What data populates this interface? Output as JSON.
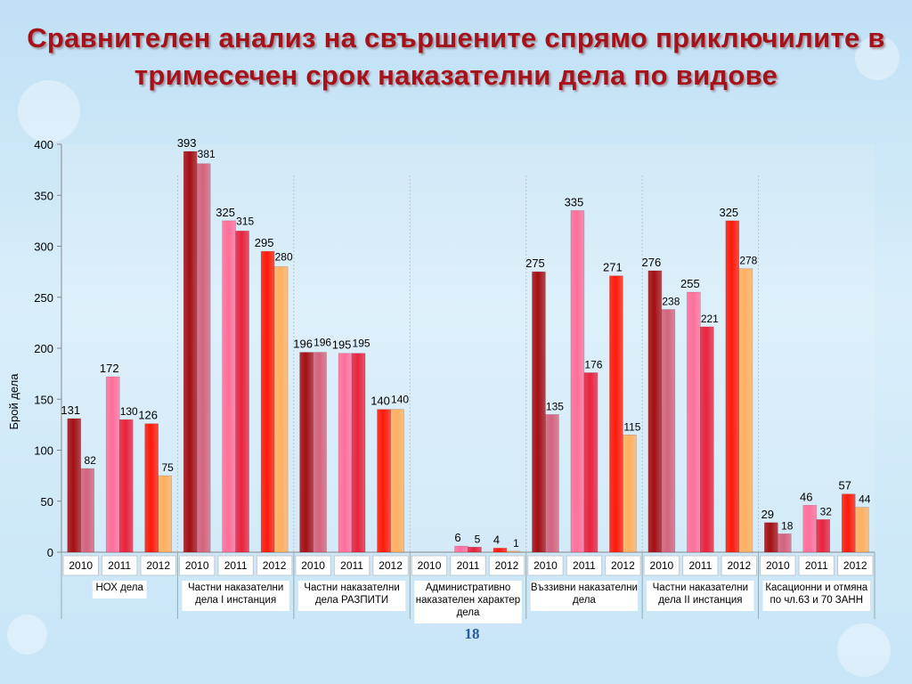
{
  "slide": {
    "title": "Сравнителен анализ на свършените спрямо приключилите в тримесечен срок наказателни дела по видове",
    "page_number": "18"
  },
  "chart_data": {
    "type": "bar",
    "ylabel": "Брой дела",
    "ylim": [
      0,
      400
    ],
    "yticks": [
      0,
      50,
      100,
      150,
      200,
      250,
      300,
      350,
      400
    ],
    "grid": false,
    "groups": [
      {
        "label": "НОХ дела",
        "years": [
          {
            "year": "2010",
            "values": [
              131,
              82
            ]
          },
          {
            "year": "2011",
            "values": [
              172,
              130
            ]
          },
          {
            "year": "2012",
            "values": [
              126,
              75
            ]
          }
        ]
      },
      {
        "label": "Частни наказателни дела I инстанция",
        "years": [
          {
            "year": "2010",
            "values": [
              393,
              381
            ]
          },
          {
            "year": "2011",
            "values": [
              325,
              315
            ]
          },
          {
            "year": "2012",
            "values": [
              295,
              280
            ]
          }
        ]
      },
      {
        "label": "Частни наказателни дела РАЗПИТИ",
        "years": [
          {
            "year": "2010",
            "values": [
              196,
              196
            ]
          },
          {
            "year": "2011",
            "values": [
              195,
              195
            ]
          },
          {
            "year": "2012",
            "values": [
              140,
              140
            ]
          }
        ]
      },
      {
        "label": "Административно наказателен характер дела",
        "years": [
          {
            "year": "2010",
            "values": [
              null,
              null
            ]
          },
          {
            "year": "2011",
            "values": [
              6,
              5
            ]
          },
          {
            "year": "2012",
            "values": [
              4,
              1
            ]
          }
        ]
      },
      {
        "label": "Въззивни наказателни дела",
        "years": [
          {
            "year": "2010",
            "values": [
              275,
              135
            ]
          },
          {
            "year": "2011",
            "values": [
              335,
              176
            ]
          },
          {
            "year": "2012",
            "values": [
              271,
              115
            ]
          }
        ]
      },
      {
        "label": "Частни наказателни дела II инстанция",
        "years": [
          {
            "year": "2010",
            "values": [
              276,
              238
            ]
          },
          {
            "year": "2011",
            "values": [
              255,
              221
            ]
          },
          {
            "year": "2012",
            "values": [
              325,
              278
            ]
          }
        ]
      },
      {
        "label": "Касационни и отмяна по чл.63 и 70 ЗАНН",
        "years": [
          {
            "year": "2010",
            "values": [
              29,
              18
            ]
          },
          {
            "year": "2011",
            "values": [
              46,
              32
            ]
          },
          {
            "year": "2012",
            "values": [
              57,
              44
            ]
          }
        ]
      }
    ],
    "colors": {
      "2010": [
        "#a40f14",
        "#d4637e"
      ],
      "2011": [
        "#ff6f9a",
        "#e8233f"
      ],
      "2012": [
        "#ff1a0a",
        "#ffb060"
      ]
    }
  }
}
